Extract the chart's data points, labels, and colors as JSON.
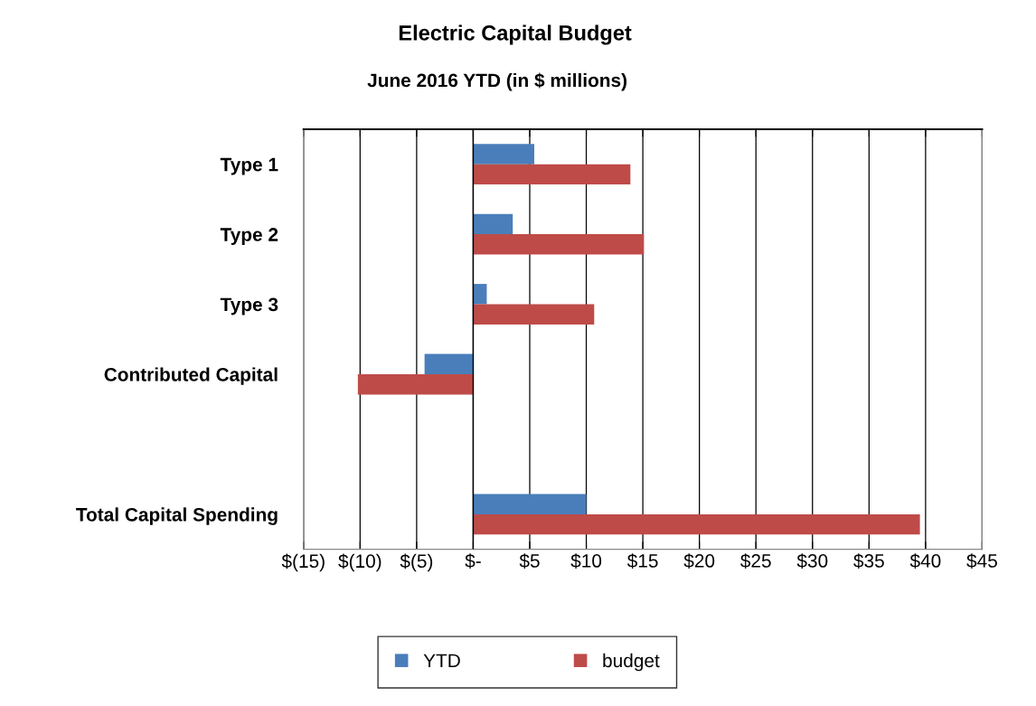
{
  "chart_data": {
    "type": "bar",
    "orientation": "horizontal",
    "title": "Electric Capital Budget",
    "subtitle": "June 2016 YTD (in $ millions)",
    "categories": [
      "Type 1",
      "Type 2",
      "Type 3",
      "Contributed Capital",
      null,
      "Total Capital Spending"
    ],
    "series": [
      {
        "name": "YTD",
        "color": "#4a7ebb",
        "values": [
          5.4,
          3.5,
          1.2,
          -4.3,
          null,
          10.0
        ]
      },
      {
        "name": "budget",
        "color": "#be4b48",
        "values": [
          13.9,
          15.1,
          10.7,
          -10.2,
          null,
          39.5
        ]
      }
    ],
    "xlim": [
      -15,
      45
    ],
    "xticks": [
      {
        "value": -15,
        "label": "$(15)"
      },
      {
        "value": -10,
        "label": "$(10)"
      },
      {
        "value": -5,
        "label": "$(5)"
      },
      {
        "value": 0,
        "label": "$-"
      },
      {
        "value": 5,
        "label": "$5"
      },
      {
        "value": 10,
        "label": "$10"
      },
      {
        "value": 15,
        "label": "$15"
      },
      {
        "value": 20,
        "label": "$20"
      },
      {
        "value": 25,
        "label": "$25"
      },
      {
        "value": 30,
        "label": "$30"
      },
      {
        "value": 35,
        "label": "$35"
      },
      {
        "value": 40,
        "label": "$40"
      },
      {
        "value": 45,
        "label": "$45"
      }
    ],
    "grid": "x",
    "legend": "bottom"
  }
}
